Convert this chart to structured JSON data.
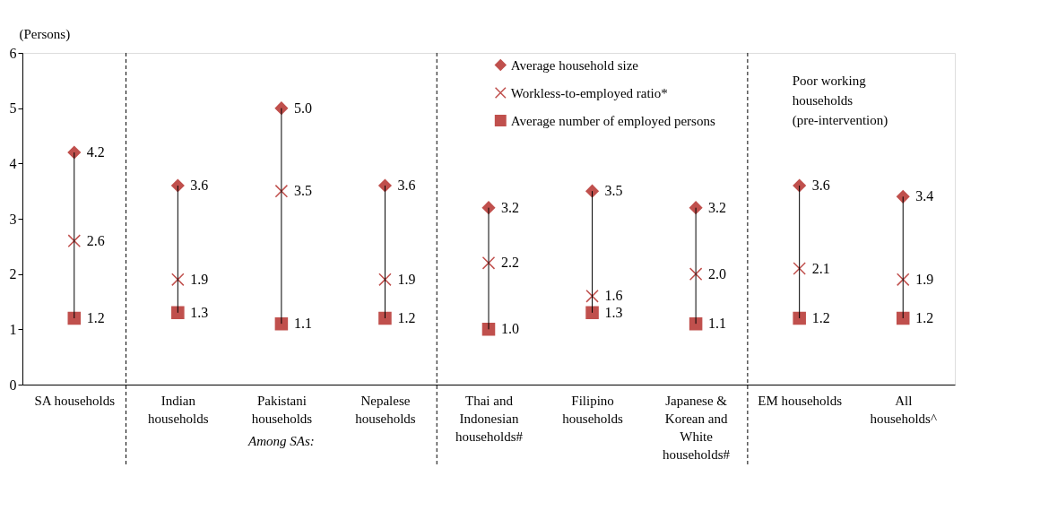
{
  "chart_data": {
    "type": "scatter",
    "ylabel": "(Persons)",
    "categories": [
      "SA households",
      "Indian households",
      "Pakistani households",
      "Nepalese households",
      "Thai and Indonesian households#",
      "Filipino households",
      "Japanese & Korean and White households#",
      "EM households",
      "All households^"
    ],
    "series": [
      {
        "name": "Average household size",
        "color": "#c0504d",
        "marker": "diamond",
        "values": [
          4.2,
          3.6,
          5.0,
          3.6,
          3.2,
          3.5,
          3.2,
          3.6,
          3.4
        ],
        "value_labels": [
          "4.2",
          "3.6",
          "5.0",
          "3.6",
          "3.2",
          "3.5",
          "3.2",
          "3.6",
          "3.4"
        ]
      },
      {
        "name": "Workless-to-employed ratio*",
        "color": "#c0504d",
        "marker": "cross",
        "values": [
          2.6,
          1.9,
          3.5,
          1.9,
          2.2,
          1.6,
          2.0,
          2.1,
          1.9
        ],
        "value_labels": [
          "2.6",
          "1.9",
          "3.5",
          "1.9",
          "2.2",
          "1.6",
          "2.0",
          "2.1",
          "1.9"
        ]
      },
      {
        "name": "Average number of employed persons",
        "color": "#c0504d",
        "marker": "square",
        "values": [
          1.2,
          1.3,
          1.1,
          1.2,
          1.0,
          1.3,
          1.1,
          1.2,
          1.2
        ],
        "value_labels": [
          "1.2",
          "1.3",
          "1.1",
          "1.2",
          "1.0",
          "1.3",
          "1.1",
          "1.2",
          "1.2"
        ]
      }
    ],
    "ylim": [
      0,
      6
    ],
    "yticks": [
      0,
      1,
      2,
      3,
      4,
      5,
      6
    ],
    "grid": false,
    "legend": "top",
    "annotations": [
      "Among SAs:",
      "Poor working households (pre-intervention)"
    ]
  }
}
